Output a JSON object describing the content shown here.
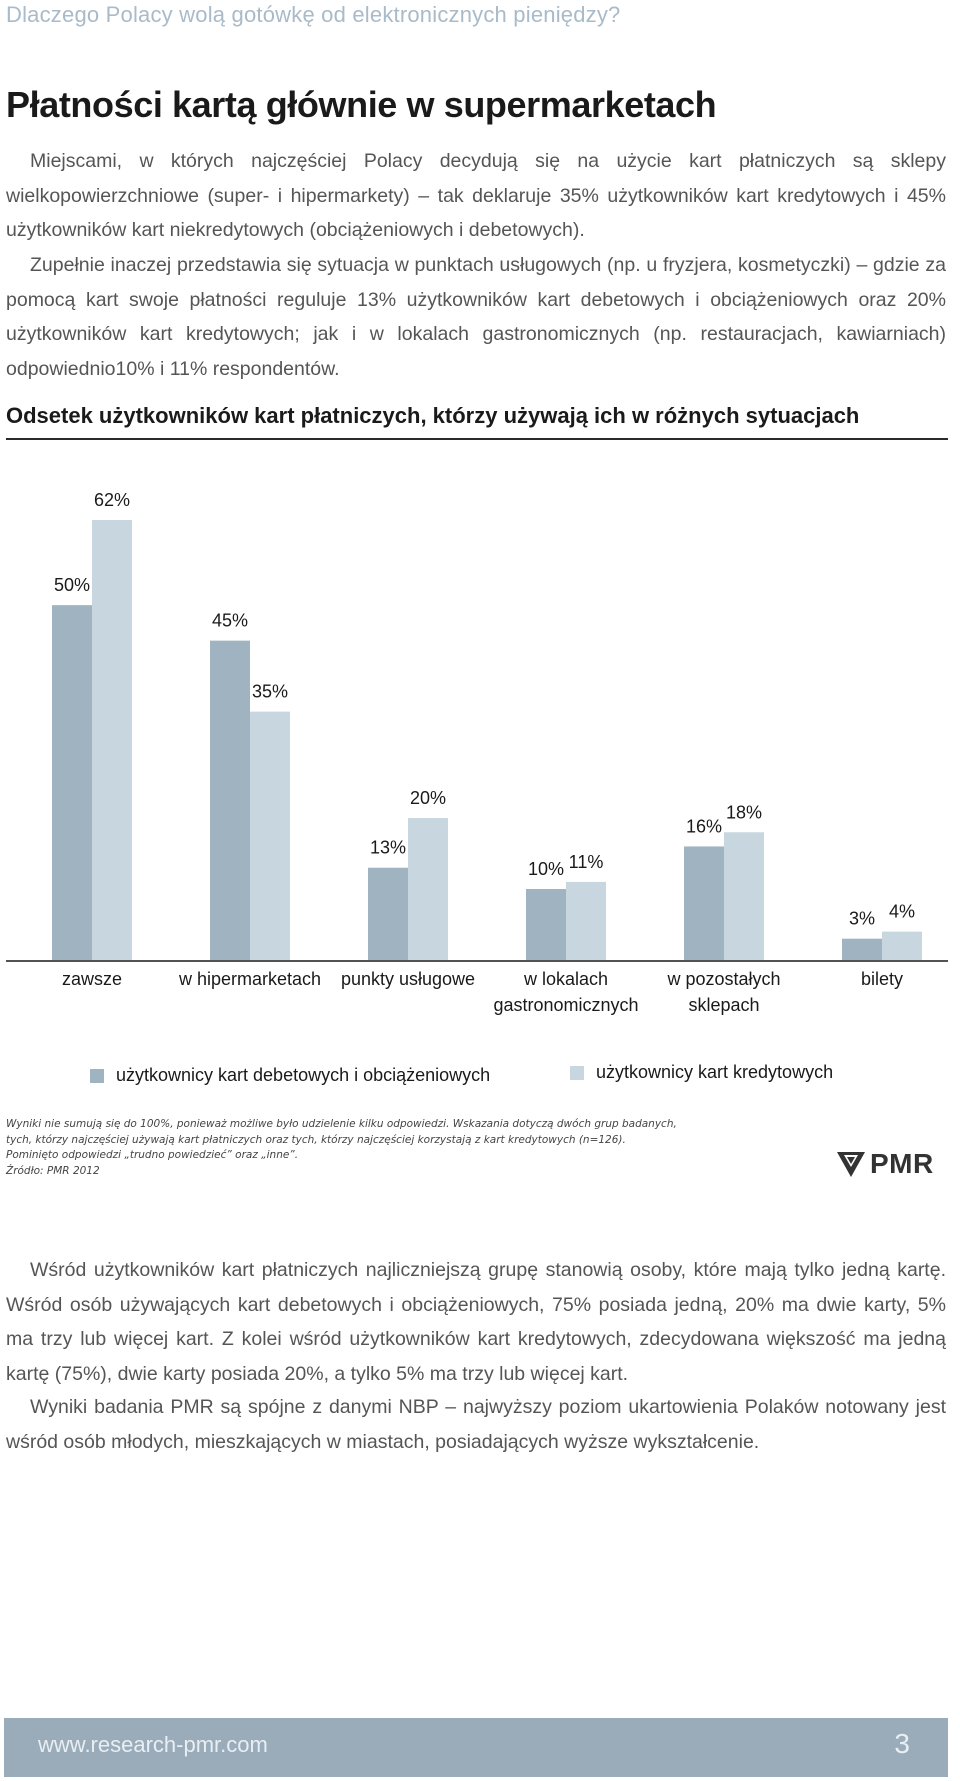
{
  "header": {
    "running_title": "Dlaczego Polacy wolą gotówkę od elektronicznych pieniędzy?"
  },
  "section": {
    "title": "Płatności kartą głównie w supermarketach",
    "paragraph1": "Miejscami, w których najczęściej Polacy decydują się na użycie kart płatniczych są sklepy wielkopowierzchniowe (super- i hipermarkety) – tak deklaruje 35% użytkowników kart kredytowych i 45% użytkowników kart niekredytowych (obciążeniowych i debetowych).",
    "paragraph2": "Zupełnie inaczej przedstawia się sytuacja w punktach usługowych (np. u fryzjera, kosmetyczki) – gdzie za pomocą kart swoje płatności reguluje 13% użytkowników kart debetowych i obciążeniowych oraz 20% użytkowników kart kredytowych; jak i w lokalach gastronomicznych (np. restauracjach, kawiarniach) odpowiednio10% i 11% respondentów."
  },
  "chart_data": {
    "type": "bar",
    "title": "Odsetek użytkowników kart płatniczych, którzy używają ich w różnych sytuacjach",
    "categories": [
      [
        "zawsze"
      ],
      [
        "w hipermarketach"
      ],
      [
        "punkty usługowe"
      ],
      [
        "w lokalach",
        "gastronomicznych"
      ],
      [
        "w pozostałych",
        "sklepach"
      ],
      [
        "bilety"
      ]
    ],
    "series": [
      {
        "name": "użytkownicy kart debetowych i obciążeniowych",
        "values": [
          50,
          45,
          13,
          10,
          16,
          3
        ],
        "labels": [
          "50%",
          "45%",
          "13%",
          "10%",
          "16%",
          "3%"
        ],
        "color": "#9fb3c1"
      },
      {
        "name": "użytkownicy kart kredytowych",
        "values": [
          62,
          35,
          20,
          11,
          18,
          4
        ],
        "labels": [
          "62%",
          "35%",
          "20%",
          "11%",
          "18%",
          "4%"
        ],
        "color": "#c8d6df"
      }
    ],
    "unit": "%",
    "ylim": [
      0,
      62
    ],
    "grid": false,
    "legend_position": "bottom"
  },
  "notes": {
    "line1": "Wyniki nie sumują się do 100%, ponieważ możliwe było udzielenie kilku odpowiedzi. Wskazania dotyczą dwóch grup badanych,",
    "line2": "tych, którzy najczęściej używają kart płatniczych oraz tych, którzy najczęściej korzystają z kart kredytowych (n=126).",
    "line3": "Pominięto odpowiedzi „trudno powiedzieć” oraz „inne”.",
    "source": "Źródło: PMR 2012"
  },
  "logo": {
    "text": "PMR"
  },
  "body": {
    "paragraph3": "Wśród użytkowników kart płatniczych najliczniejszą grupę stanowią osoby, które mają tylko jedną kartę. Wśród osób używających kart debetowych i obciążeniowych, 75% posiada jedną, 20% ma dwie karty, 5% ma trzy lub więcej kart. Z kolei wśród użytkowników kart kredytowych, zdecydowana większość ma jedną kartę (75%), dwie karty posiada 20%, a tylko 5% ma trzy lub więcej kart.",
    "paragraph4": "Wyniki badania PMR są spójne z danymi NBP – najwyższy poziom ukartowienia Polaków notowany jest wśród osób młodych, mieszkających w miastach, posiadających wyższe wykształcenie."
  },
  "footer": {
    "url": "www.research-pmr.com",
    "page_number": "3"
  },
  "colors": {
    "running_head": "#a9bac8",
    "footer_band": "#9aacba",
    "debit": "#9fb3c1",
    "credit": "#c8d6df"
  }
}
